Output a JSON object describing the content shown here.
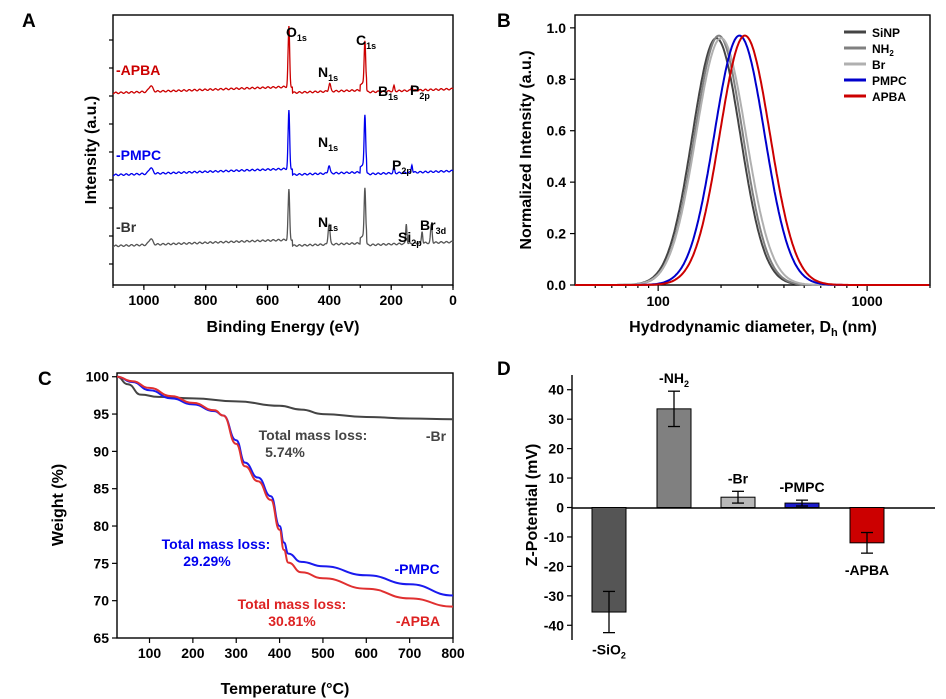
{
  "panels": {
    "A": {
      "letter": "A",
      "xlabel": "Binding Energy (eV)",
      "ylabel": "Intensity (a.u.)",
      "xlim": [
        1100,
        0
      ],
      "xticks": [
        "1000",
        "800",
        "600",
        "400",
        "200",
        "0"
      ],
      "traces": [
        {
          "label": "-APBA",
          "color": "#cc0000"
        },
        {
          "label": "-PMPC",
          "color": "#0000ee"
        },
        {
          "label": "-Br",
          "color": "#444444"
        }
      ],
      "peak_labels": {
        "o1s": {
          "main": "O",
          "sub": "1s"
        },
        "c1s": {
          "main": "C",
          "sub": "1s"
        },
        "n1s_a": {
          "main": "N",
          "sub": "1s"
        },
        "b1s": {
          "main": "B",
          "sub": "1s"
        },
        "p2p_a": {
          "main": "P",
          "sub": "2p"
        },
        "n1s_b": {
          "main": "N",
          "sub": "1s"
        },
        "p2p_b": {
          "main": "P",
          "sub": "2p"
        },
        "n1s_c": {
          "main": "N",
          "sub": "1s"
        },
        "si2p": {
          "main": "Si",
          "sub": "2p"
        },
        "br3d": {
          "main": "Br",
          "sub": "3d"
        }
      }
    },
    "B": {
      "letter": "B",
      "xlabel_main": "Hydrodynamic diameter, D",
      "xlabel_sub": "h",
      "xlabel_unit": " (nm)",
      "ylabel": "Normalized Intensity (a.u.)",
      "xticks": [
        "100",
        "1000"
      ],
      "yticks": [
        "0.0",
        "0.2",
        "0.4",
        "0.6",
        "0.8",
        "1.0"
      ],
      "legend": [
        {
          "main": "SiNP",
          "sub": "",
          "color": "#444444"
        },
        {
          "main": "NH",
          "sub": "2",
          "color": "#808080"
        },
        {
          "main": "Br",
          "sub": "",
          "color": "#b0b0b0"
        },
        {
          "main": "PMPC",
          "sub": "",
          "color": "#0000cc"
        },
        {
          "main": "APBA",
          "sub": "",
          "color": "#cc0000"
        }
      ]
    },
    "C": {
      "letter": "C",
      "xlabel": "Temperature (°C)",
      "ylabel": "Weight (%)",
      "xticks": [
        "100",
        "200",
        "300",
        "400",
        "500",
        "600",
        "700",
        "800"
      ],
      "yticks": [
        "65",
        "70",
        "75",
        "80",
        "85",
        "90",
        "95",
        "100"
      ],
      "annotations": {
        "br_text1": "Total mass loss:",
        "br_text2": "5.74%",
        "br_label": "-Br",
        "pmpc_text1": "Total mass loss:",
        "pmpc_text2": "29.29%",
        "pmpc_label": "-PMPC",
        "apba_text1": "Total mass loss:",
        "apba_text2": "30.81%",
        "apba_label": "-APBA"
      }
    },
    "D": {
      "letter": "D",
      "ylabel": "Z-Potential (mV)",
      "yticks": [
        "40",
        "30",
        "20",
        "10",
        "0",
        "-10",
        "-20",
        "-30",
        "-40"
      ],
      "bars": [
        {
          "main": "-SiO",
          "sub": "2",
          "color": "#555555"
        },
        {
          "main": "-NH",
          "sub": "2",
          "color": "#808080"
        },
        {
          "main": "-Br",
          "sub": "",
          "color": "#b8b8b8"
        },
        {
          "main": "-PMPC",
          "sub": "",
          "color": "#1c1ccc"
        },
        {
          "main": "-APBA",
          "sub": "",
          "color": "#cc0000"
        }
      ]
    }
  },
  "chart_data": [
    {
      "type": "line",
      "title": "",
      "xlabel": "Binding Energy (eV)",
      "ylabel": "Intensity (a.u.)",
      "xlim": [
        1100,
        0
      ],
      "x_reversed": true,
      "y_ticks_labeled": false,
      "series": [
        {
          "name": "-APBA",
          "color": "#cc0000",
          "peaks_eV": [
            531,
            399,
            285,
            191,
            133
          ]
        },
        {
          "name": "-PMPC",
          "color": "#0000ee",
          "peaks_eV": [
            531,
            401,
            285,
            191,
            133
          ]
        },
        {
          "name": "-Br",
          "color": "#444444",
          "peaks_eV": [
            531,
            401,
            285,
            151,
            100,
            70
          ]
        }
      ]
    },
    {
      "type": "line",
      "title": "",
      "xlabel": "Hydrodynamic diameter, Dh (nm)",
      "ylabel": "Normalized Intensity (a.u.)",
      "x_scale": "log",
      "xlim": [
        40,
        2000
      ],
      "ylim": [
        0,
        1.05
      ],
      "series": [
        {
          "name": "SiNP",
          "color": "#444444",
          "peak_nm": 190,
          "peak_value": 0.96
        },
        {
          "name": "NH2",
          "color": "#808080",
          "peak_nm": 195,
          "peak_value": 0.97
        },
        {
          "name": "Br",
          "color": "#b0b0b0",
          "peak_nm": 200,
          "peak_value": 0.96
        },
        {
          "name": "PMPC",
          "color": "#0000cc",
          "peak_nm": 245,
          "peak_value": 0.97
        },
        {
          "name": "APBA",
          "color": "#cc0000",
          "peak_nm": 260,
          "peak_value": 0.97
        }
      ]
    },
    {
      "type": "line",
      "title": "",
      "xlabel": "Temperature (°C)",
      "ylabel": "Weight (%)",
      "xlim": [
        25,
        800
      ],
      "ylim": [
        65,
        100.5
      ],
      "series": [
        {
          "name": "-Br",
          "color": "#444444",
          "x": [
            25,
            50,
            80,
            120,
            200,
            300,
            400,
            450,
            500,
            600,
            700,
            800
          ],
          "y": [
            100,
            99,
            97.6,
            97.3,
            97.1,
            96.7,
            96.1,
            95.6,
            95.0,
            94.6,
            94.4,
            94.3
          ]
        },
        {
          "name": "-PMPC",
          "color": "#1a1aee",
          "x": [
            25,
            60,
            100,
            150,
            200,
            250,
            270,
            300,
            320,
            350,
            380,
            400,
            410,
            420,
            450,
            500,
            600,
            700,
            800
          ],
          "y": [
            100,
            99.3,
            98.2,
            97.1,
            96.3,
            95.4,
            94.8,
            91.5,
            88.5,
            86.5,
            84.0,
            80.0,
            77.8,
            76.3,
            75.2,
            74.6,
            73.4,
            72.2,
            70.7
          ]
        },
        {
          "name": "-APBA",
          "color": "#e03030",
          "x": [
            25,
            60,
            100,
            150,
            200,
            250,
            270,
            300,
            320,
            350,
            380,
            400,
            410,
            420,
            450,
            500,
            600,
            700,
            800
          ],
          "y": [
            100,
            99.4,
            98.5,
            97.4,
            96.5,
            95.5,
            94.8,
            91.0,
            88.0,
            86.0,
            83.5,
            79.5,
            76.8,
            75.1,
            73.8,
            73.0,
            71.6,
            70.3,
            69.2
          ]
        }
      ],
      "annotations": [
        {
          "text": "Total mass loss: 5.74%",
          "series": "-Br"
        },
        {
          "text": "Total mass loss: 29.29%",
          "series": "-PMPC"
        },
        {
          "text": "Total mass loss: 30.81%",
          "series": "-APBA"
        }
      ]
    },
    {
      "type": "bar",
      "title": "",
      "xlabel": "",
      "ylabel": "Z-Potential (mV)",
      "ylim": [
        -45,
        45
      ],
      "categories": [
        "-SiO2",
        "-NH2",
        "-Br",
        "-PMPC",
        "-APBA"
      ],
      "values": [
        -35.5,
        33.5,
        3.5,
        1.5,
        -12
      ],
      "errors": [
        7,
        6,
        2,
        1,
        3.5
      ]
    }
  ]
}
